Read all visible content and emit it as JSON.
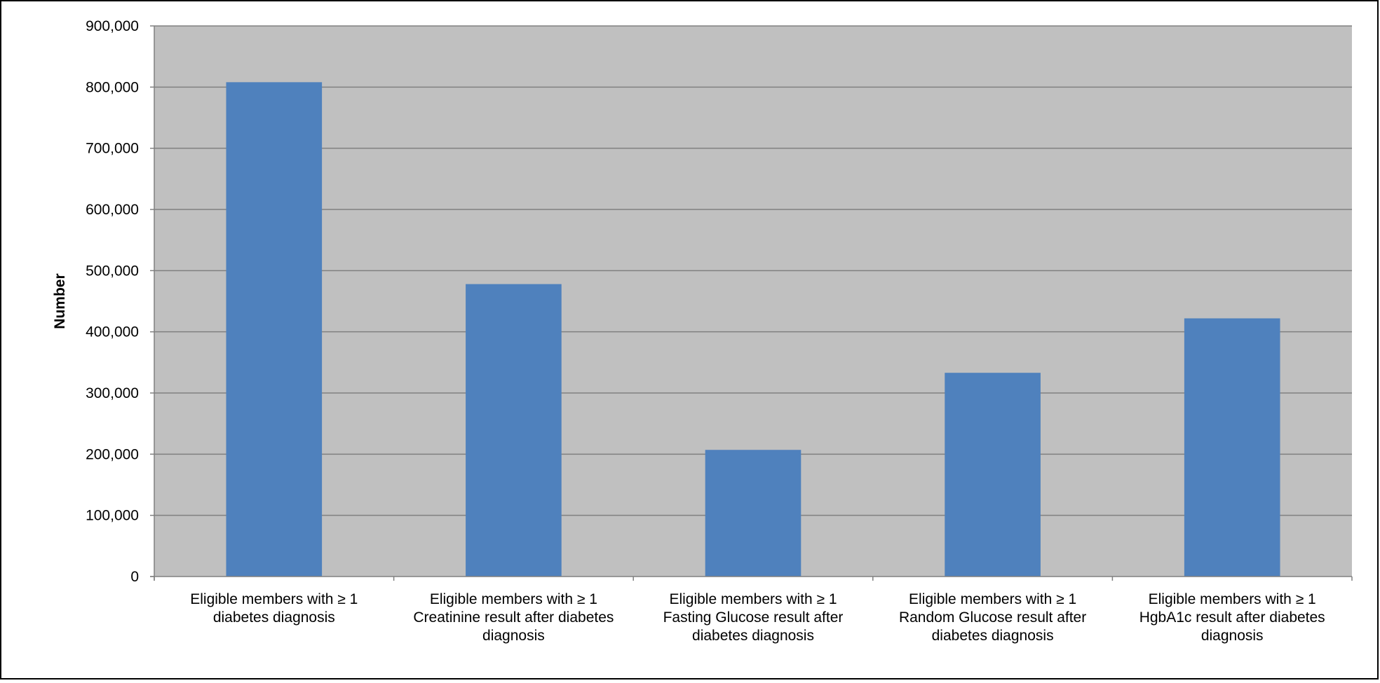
{
  "chart_data": {
    "type": "bar",
    "title": "",
    "xlabel": "",
    "ylabel": "Number",
    "ylim": [
      0,
      900000
    ],
    "yticks": [
      0,
      100000,
      200000,
      300000,
      400000,
      500000,
      600000,
      700000,
      800000,
      900000
    ],
    "ytick_labels": [
      "0",
      "100,000",
      "200,000",
      "300,000",
      "400,000",
      "500,000",
      "600,000",
      "700,000",
      "800,000",
      "900,000"
    ],
    "categories": [
      [
        "Eligible members with ≥ 1",
        "diabetes diagnosis"
      ],
      [
        "Eligible members with ≥ 1",
        "Creatinine result after diabetes",
        "diagnosis"
      ],
      [
        "Eligible members with ≥ 1",
        "Fasting Glucose result after",
        "diabetes diagnosis"
      ],
      [
        "Eligible members with ≥ 1",
        "Random Glucose result after",
        "diabetes diagnosis"
      ],
      [
        "Eligible members with ≥ 1",
        "HgbA1c result after diabetes",
        "diagnosis"
      ]
    ],
    "values": [
      808000,
      478000,
      207000,
      333000,
      422000
    ],
    "grid": true,
    "legend": "none",
    "colors": {
      "bar": "#4f81bd",
      "plot_background": "#c0c0c0",
      "gridline": "#808080",
      "axis": "#808080"
    }
  }
}
